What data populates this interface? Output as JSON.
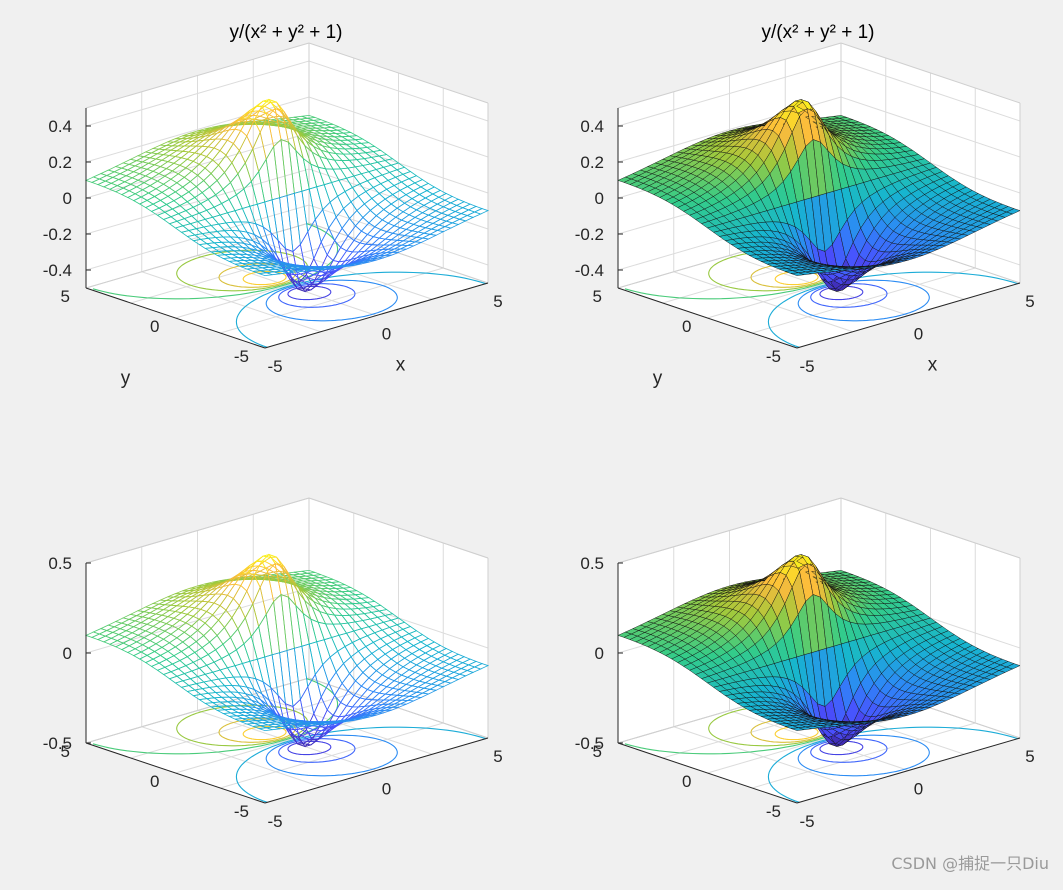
{
  "figure": {
    "background": "#f0f0f0",
    "watermark": "CSDN @捕捉一只Diu",
    "colormap": "parula",
    "colormap_stops": [
      "#3e26a8",
      "#4a4ffe",
      "#2e87f7",
      "#17b5cf",
      "#33cc8a",
      "#a4c93a",
      "#fcba3d",
      "#f9fb15"
    ]
  },
  "chart_data": [
    {
      "type": "mesh",
      "title": "y/(x² + y² + 1)",
      "function": "z = y/(x^2 + y^2 + 1)",
      "x_range": [
        -5,
        5
      ],
      "y_range": [
        -5,
        5
      ],
      "zlim": [
        -0.5,
        0.5
      ],
      "xticks": [
        "-5",
        "0",
        "5"
      ],
      "yticks": [
        "-5",
        "0",
        "5"
      ],
      "zticks": [
        "-0.4",
        "-0.2",
        "0",
        "0.2",
        "0.4"
      ],
      "xlabel": "x",
      "ylabel": "y",
      "contour_below": true,
      "face": "wireframe",
      "grid": true
    },
    {
      "type": "surface",
      "title": "y/(x² + y² + 1)",
      "function": "z = y/(x^2 + y^2 + 1)",
      "x_range": [
        -5,
        5
      ],
      "y_range": [
        -5,
        5
      ],
      "zlim": [
        -0.5,
        0.5
      ],
      "xticks": [
        "-5",
        "0",
        "5"
      ],
      "yticks": [
        "-5",
        "0",
        "5"
      ],
      "zticks": [
        "-0.4",
        "-0.2",
        "0",
        "0.2",
        "0.4"
      ],
      "xlabel": "x",
      "ylabel": "y",
      "contour_below": true,
      "face": "shaded",
      "grid": true
    },
    {
      "type": "mesh",
      "title": "",
      "function": "z = y/(x^2 + y^2 + 1)",
      "x_range": [
        -5,
        5
      ],
      "y_range": [
        -5,
        5
      ],
      "zlim": [
        -0.5,
        0.5
      ],
      "xticks": [
        "-5",
        "0",
        "5"
      ],
      "yticks": [
        "-5",
        "0",
        "5"
      ],
      "zticks": [
        "-0.5",
        "0",
        "0.5"
      ],
      "xlabel": "",
      "ylabel": "",
      "contour_below": true,
      "face": "wireframe",
      "grid": true
    },
    {
      "type": "surface",
      "title": "",
      "function": "z = y/(x^2 + y^2 + 1)",
      "x_range": [
        -5,
        5
      ],
      "y_range": [
        -5,
        5
      ],
      "zlim": [
        -0.5,
        0.5
      ],
      "xticks": [
        "-5",
        "0",
        "5"
      ],
      "yticks": [
        "-5",
        "0",
        "5"
      ],
      "zticks": [
        "-0.5",
        "0",
        "0.5"
      ],
      "xlabel": "",
      "ylabel": "",
      "contour_below": true,
      "face": "shaded",
      "grid": true
    }
  ]
}
